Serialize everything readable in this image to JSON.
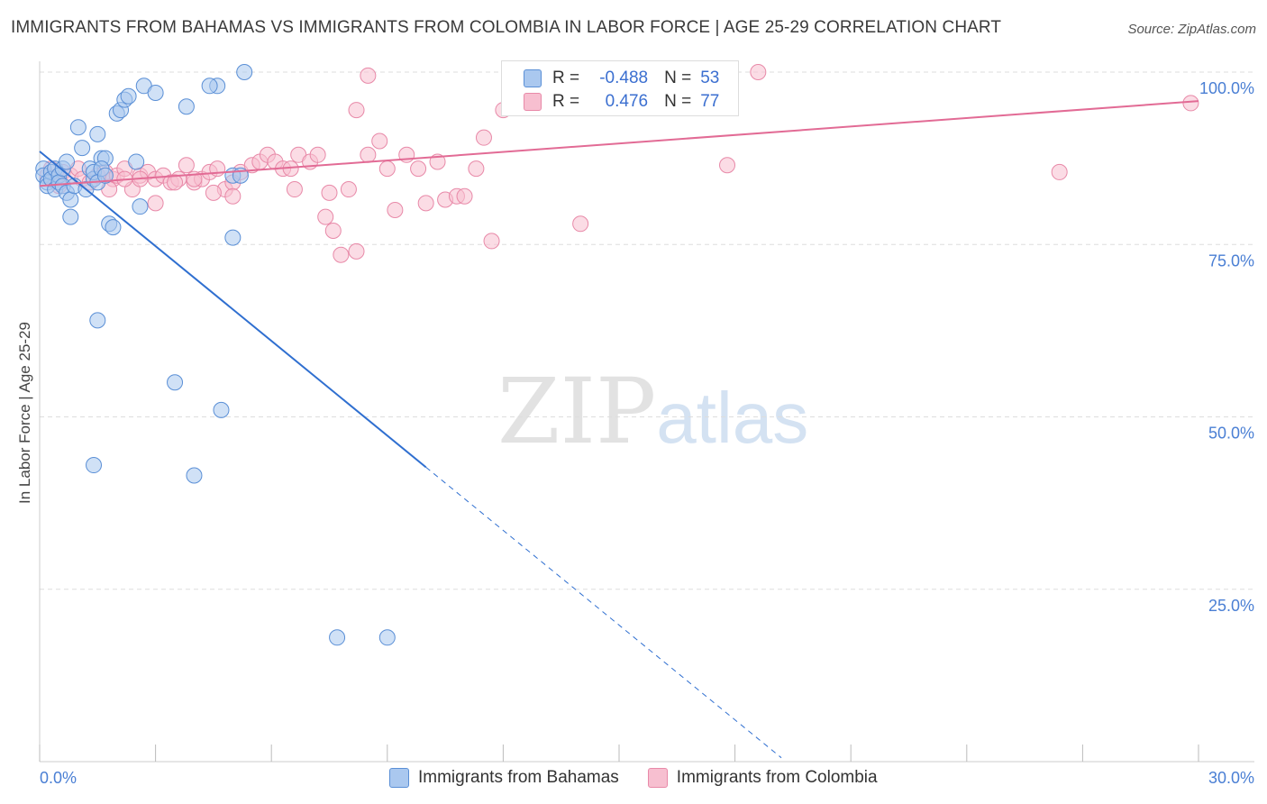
{
  "title": "IMMIGRANTS FROM BAHAMAS VS IMMIGRANTS FROM COLOMBIA IN LABOR FORCE | AGE 25-29 CORRELATION CHART",
  "source": "Source: ZipAtlas.com",
  "watermark": {
    "zip": "ZIP",
    "atlas": "atlas"
  },
  "stats": {
    "r_label": "R =",
    "n_label": "N =",
    "rows": [
      {
        "r": "-0.488",
        "n": "53"
      },
      {
        "r": "0.476",
        "n": "77"
      }
    ]
  },
  "colors": {
    "blue_fill": "#aac8ef",
    "blue_stroke": "#5a8fd6",
    "blue_line": "#2f6fd0",
    "pink_fill": "#f7bfd0",
    "pink_stroke": "#e889a8",
    "pink_line": "#e26b95",
    "tick_text": "#4a7fd4",
    "grid": "#dddddd"
  },
  "chart_data": {
    "type": "scatter",
    "xlabel": "",
    "ylabel": "In Labor Force | Age 25-29",
    "xlim": [
      0,
      0.3
    ],
    "ylim": [
      0,
      1.0
    ],
    "x_tick_labels": [
      "0.0%",
      "30.0%"
    ],
    "y_ticks": [
      0.25,
      0.5,
      0.75,
      1.0
    ],
    "y_tick_labels": [
      "25.0%",
      "50.0%",
      "75.0%",
      "100.0%"
    ],
    "grid": true,
    "legend_position": "bottom-center",
    "series": [
      {
        "name": "Immigrants from Bahamas",
        "r": -0.488,
        "n": 53,
        "trend": {
          "x0": 0.0,
          "y0": 0.885,
          "x1": 0.1,
          "y1": 0.427,
          "dashed_to_x": 0.192
        },
        "points": [
          [
            0.001,
            0.86
          ],
          [
            0.001,
            0.85
          ],
          [
            0.002,
            0.84
          ],
          [
            0.002,
            0.835
          ],
          [
            0.003,
            0.855
          ],
          [
            0.003,
            0.845
          ],
          [
            0.004,
            0.86
          ],
          [
            0.004,
            0.83
          ],
          [
            0.005,
            0.85
          ],
          [
            0.005,
            0.84
          ],
          [
            0.006,
            0.835
          ],
          [
            0.006,
            0.86
          ],
          [
            0.007,
            0.87
          ],
          [
            0.007,
            0.825
          ],
          [
            0.008,
            0.815
          ],
          [
            0.008,
            0.79
          ],
          [
            0.009,
            0.835
          ],
          [
            0.01,
            0.92
          ],
          [
            0.011,
            0.89
          ],
          [
            0.012,
            0.83
          ],
          [
            0.013,
            0.86
          ],
          [
            0.014,
            0.845
          ],
          [
            0.015,
            0.91
          ],
          [
            0.016,
            0.875
          ],
          [
            0.017,
            0.875
          ],
          [
            0.018,
            0.78
          ],
          [
            0.019,
            0.775
          ],
          [
            0.02,
            0.94
          ],
          [
            0.021,
            0.945
          ],
          [
            0.022,
            0.96
          ],
          [
            0.023,
            0.965
          ],
          [
            0.014,
            0.855
          ],
          [
            0.015,
            0.84
          ],
          [
            0.015,
            0.64
          ],
          [
            0.016,
            0.86
          ],
          [
            0.017,
            0.85
          ],
          [
            0.025,
            0.87
          ],
          [
            0.026,
            0.805
          ],
          [
            0.027,
            0.98
          ],
          [
            0.03,
            0.97
          ],
          [
            0.035,
            0.55
          ],
          [
            0.038,
            0.95
          ],
          [
            0.04,
            0.415
          ],
          [
            0.014,
            0.43
          ],
          [
            0.046,
            0.98
          ],
          [
            0.047,
            0.51
          ],
          [
            0.044,
            0.98
          ],
          [
            0.05,
            0.76
          ],
          [
            0.05,
            0.85
          ],
          [
            0.052,
            0.85
          ],
          [
            0.053,
            1.0
          ],
          [
            0.077,
            0.18
          ],
          [
            0.09,
            0.18
          ]
        ]
      },
      {
        "name": "Immigrants from Colombia",
        "r": 0.476,
        "n": 77,
        "trend": {
          "x0": 0.0,
          "y0": 0.835,
          "x1": 0.3,
          "y1": 0.958
        },
        "points": [
          [
            0.002,
            0.85
          ],
          [
            0.003,
            0.86
          ],
          [
            0.004,
            0.845
          ],
          [
            0.005,
            0.835
          ],
          [
            0.006,
            0.855
          ],
          [
            0.008,
            0.85
          ],
          [
            0.01,
            0.86
          ],
          [
            0.011,
            0.845
          ],
          [
            0.013,
            0.84
          ],
          [
            0.015,
            0.85
          ],
          [
            0.017,
            0.855
          ],
          [
            0.019,
            0.845
          ],
          [
            0.02,
            0.85
          ],
          [
            0.022,
            0.86
          ],
          [
            0.024,
            0.83
          ],
          [
            0.026,
            0.85
          ],
          [
            0.028,
            0.855
          ],
          [
            0.03,
            0.845
          ],
          [
            0.032,
            0.85
          ],
          [
            0.034,
            0.84
          ],
          [
            0.036,
            0.845
          ],
          [
            0.038,
            0.865
          ],
          [
            0.04,
            0.84
          ],
          [
            0.042,
            0.845
          ],
          [
            0.044,
            0.855
          ],
          [
            0.046,
            0.86
          ],
          [
            0.048,
            0.83
          ],
          [
            0.05,
            0.84
          ],
          [
            0.052,
            0.855
          ],
          [
            0.055,
            0.865
          ],
          [
            0.057,
            0.87
          ],
          [
            0.059,
            0.88
          ],
          [
            0.061,
            0.87
          ],
          [
            0.063,
            0.86
          ],
          [
            0.065,
            0.86
          ],
          [
            0.067,
            0.88
          ],
          [
            0.07,
            0.87
          ],
          [
            0.072,
            0.88
          ],
          [
            0.074,
            0.79
          ],
          [
            0.076,
            0.77
          ],
          [
            0.078,
            0.735
          ],
          [
            0.08,
            0.83
          ],
          [
            0.082,
            0.74
          ],
          [
            0.085,
            0.88
          ],
          [
            0.088,
            0.9
          ],
          [
            0.09,
            0.86
          ],
          [
            0.092,
            0.8
          ],
          [
            0.095,
            0.88
          ],
          [
            0.098,
            0.86
          ],
          [
            0.1,
            0.81
          ],
          [
            0.103,
            0.87
          ],
          [
            0.105,
            0.815
          ],
          [
            0.108,
            0.82
          ],
          [
            0.11,
            0.82
          ],
          [
            0.113,
            0.86
          ],
          [
            0.115,
            0.905
          ],
          [
            0.117,
            0.755
          ],
          [
            0.12,
            0.945
          ],
          [
            0.14,
            0.78
          ],
          [
            0.16,
            0.98
          ],
          [
            0.176,
            1.0
          ],
          [
            0.186,
            1.0
          ],
          [
            0.178,
            0.865
          ],
          [
            0.085,
            0.995
          ],
          [
            0.082,
            0.945
          ],
          [
            0.066,
            0.83
          ],
          [
            0.075,
            0.825
          ],
          [
            0.05,
            0.82
          ],
          [
            0.045,
            0.825
          ],
          [
            0.03,
            0.81
          ],
          [
            0.018,
            0.83
          ],
          [
            0.022,
            0.845
          ],
          [
            0.026,
            0.845
          ],
          [
            0.035,
            0.84
          ],
          [
            0.04,
            0.845
          ],
          [
            0.264,
            0.855
          ],
          [
            0.298,
            0.955
          ]
        ]
      }
    ]
  }
}
